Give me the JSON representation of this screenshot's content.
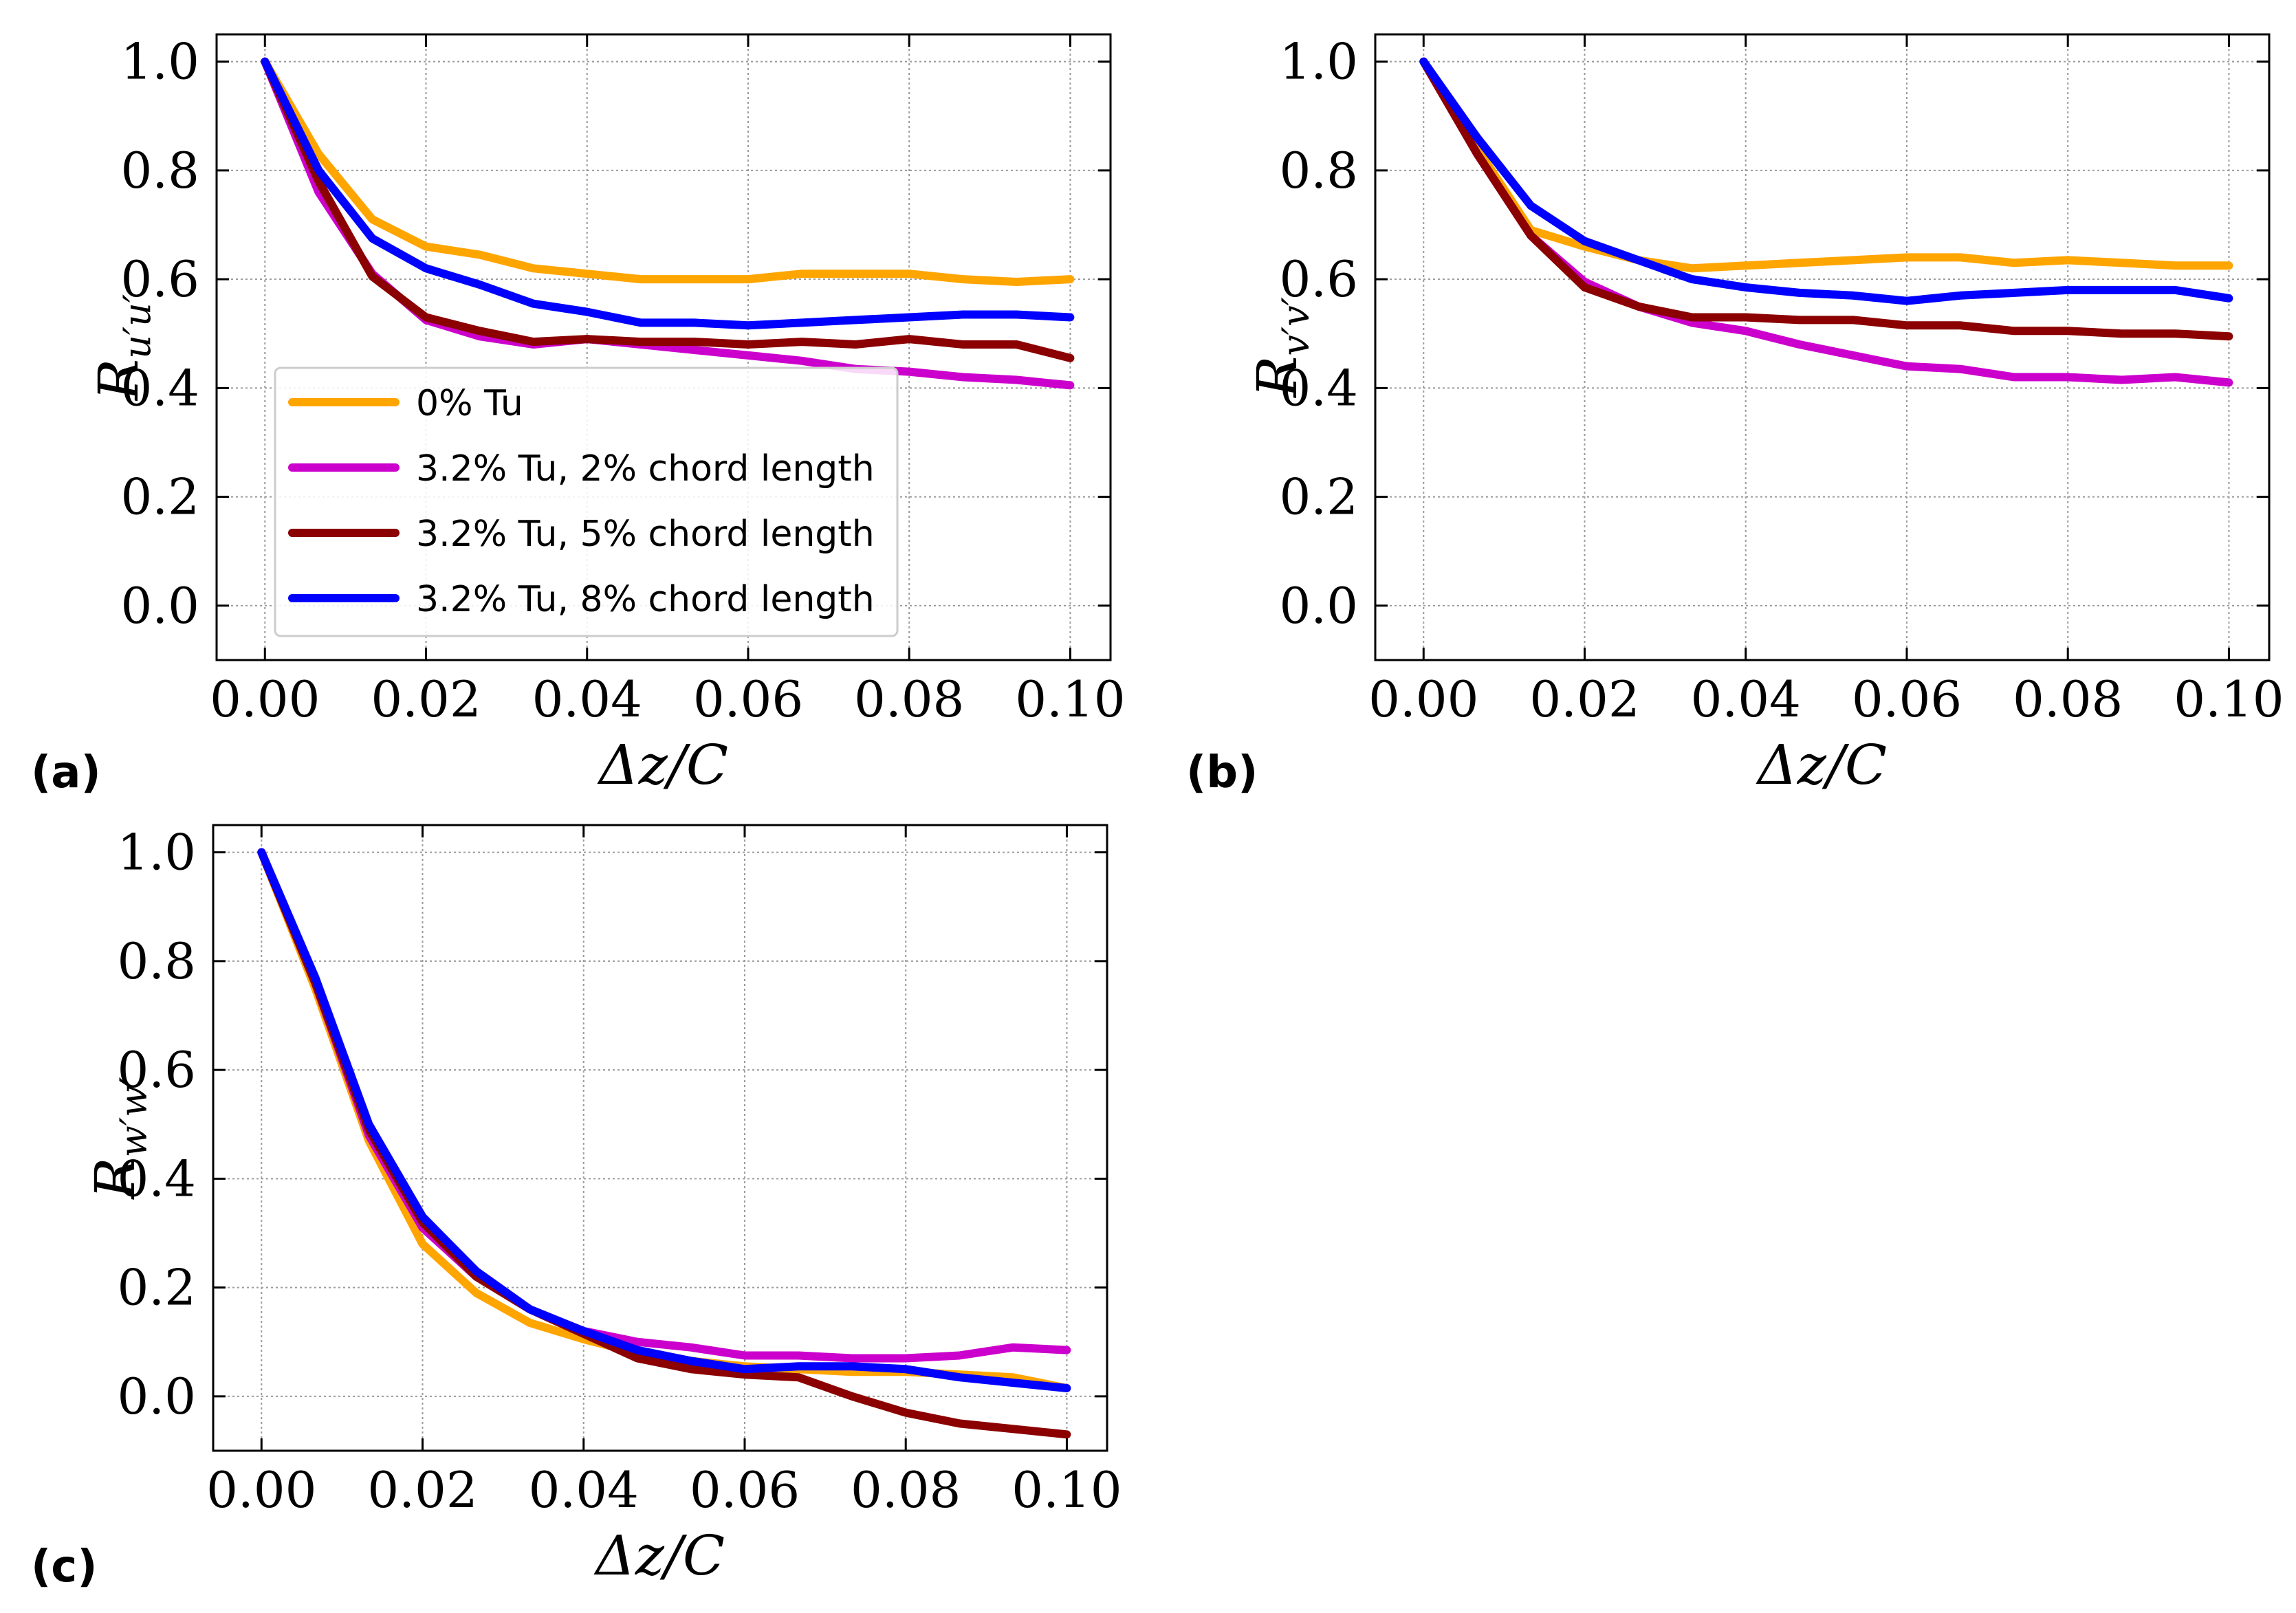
{
  "chart_data": [
    {
      "panel": "(a)",
      "type": "line",
      "title": "",
      "xlabel": "Δz/C",
      "ylabel": "R_u'u'",
      "ylabel_main": "R",
      "ylabel_sub": "u′u′",
      "xlim": [
        -0.006,
        0.105
      ],
      "ylim": [
        -0.1,
        1.05
      ],
      "xticks": [
        0.0,
        0.02,
        0.04,
        0.06,
        0.08,
        0.1
      ],
      "xtick_labels": [
        "0.00",
        "0.02",
        "0.04",
        "0.06",
        "0.08",
        "0.10"
      ],
      "yticks": [
        0.0,
        0.2,
        0.4,
        0.6,
        0.8,
        1.0
      ],
      "ytick_labels": [
        "0.0",
        "0.2",
        "0.4",
        "0.6",
        "0.8",
        "1.0"
      ],
      "grid": true,
      "legend": "lower-left",
      "x": [
        0.0,
        0.00667,
        0.01333,
        0.02,
        0.02667,
        0.03333,
        0.04,
        0.04667,
        0.05333,
        0.06,
        0.06667,
        0.07333,
        0.08,
        0.08667,
        0.09333,
        0.1
      ],
      "series": [
        {
          "name": "0% Tu",
          "color": "#FFA500",
          "values": [
            1.0,
            0.83,
            0.71,
            0.66,
            0.645,
            0.62,
            0.61,
            0.6,
            0.6,
            0.6,
            0.61,
            0.61,
            0.61,
            0.6,
            0.595,
            0.6
          ]
        },
        {
          "name": "3.2% Tu, 2% chord length",
          "color": "#CC00CC",
          "values": [
            1.0,
            0.76,
            0.61,
            0.525,
            0.495,
            0.48,
            0.49,
            0.48,
            0.47,
            0.46,
            0.45,
            0.435,
            0.43,
            0.42,
            0.415,
            0.405
          ]
        },
        {
          "name": "3.2% Tu, 5% chord length",
          "color": "#8B0000",
          "values": [
            1.0,
            0.78,
            0.605,
            0.53,
            0.505,
            0.485,
            0.49,
            0.485,
            0.485,
            0.48,
            0.485,
            0.48,
            0.49,
            0.48,
            0.48,
            0.455
          ]
        },
        {
          "name": "3.2% Tu, 8% chord length",
          "color": "#0000FF",
          "values": [
            1.0,
            0.8,
            0.675,
            0.62,
            0.59,
            0.555,
            0.54,
            0.52,
            0.52,
            0.515,
            0.52,
            0.525,
            0.53,
            0.535,
            0.535,
            0.53
          ]
        }
      ]
    },
    {
      "panel": "(b)",
      "type": "line",
      "title": "",
      "xlabel": "Δz/C",
      "ylabel": "R_v'v'",
      "ylabel_main": "R",
      "ylabel_sub": "v′v′",
      "xlim": [
        -0.006,
        0.105
      ],
      "ylim": [
        -0.1,
        1.05
      ],
      "xticks": [
        0.0,
        0.02,
        0.04,
        0.06,
        0.08,
        0.1
      ],
      "xtick_labels": [
        "0.00",
        "0.02",
        "0.04",
        "0.06",
        "0.08",
        "0.10"
      ],
      "yticks": [
        0.0,
        0.2,
        0.4,
        0.6,
        0.8,
        1.0
      ],
      "ytick_labels": [
        "0.0",
        "0.2",
        "0.4",
        "0.6",
        "0.8",
        "1.0"
      ],
      "grid": true,
      "x": [
        0.0,
        0.00667,
        0.01333,
        0.02,
        0.02667,
        0.03333,
        0.04,
        0.04667,
        0.05333,
        0.06,
        0.06667,
        0.07333,
        0.08,
        0.08667,
        0.09333,
        0.1
      ],
      "series": [
        {
          "name": "0% Tu",
          "color": "#FFA500",
          "values": [
            1.0,
            0.84,
            0.69,
            0.66,
            0.635,
            0.62,
            0.625,
            0.63,
            0.635,
            0.64,
            0.64,
            0.63,
            0.635,
            0.63,
            0.625,
            0.625
          ]
        },
        {
          "name": "3.2% Tu, 2% chord length",
          "color": "#CC00CC",
          "values": [
            1.0,
            0.83,
            0.68,
            0.595,
            0.55,
            0.52,
            0.505,
            0.48,
            0.46,
            0.44,
            0.435,
            0.42,
            0.42,
            0.415,
            0.42,
            0.41
          ]
        },
        {
          "name": "3.2% Tu, 5% chord length",
          "color": "#8B0000",
          "values": [
            1.0,
            0.83,
            0.68,
            0.585,
            0.55,
            0.53,
            0.53,
            0.525,
            0.525,
            0.515,
            0.515,
            0.505,
            0.505,
            0.5,
            0.5,
            0.495
          ]
        },
        {
          "name": "3.2% Tu, 8% chord length",
          "color": "#0000FF",
          "values": [
            1.0,
            0.86,
            0.735,
            0.67,
            0.635,
            0.6,
            0.585,
            0.575,
            0.57,
            0.56,
            0.57,
            0.575,
            0.58,
            0.58,
            0.58,
            0.565
          ]
        }
      ]
    },
    {
      "panel": "(c)",
      "type": "line",
      "title": "",
      "xlabel": "Δz/C",
      "ylabel": "R_w'w'",
      "ylabel_main": "R",
      "ylabel_sub": "w′w′",
      "xlim": [
        -0.006,
        0.105
      ],
      "ylim": [
        -0.1,
        1.05
      ],
      "xticks": [
        0.0,
        0.02,
        0.04,
        0.06,
        0.08,
        0.1
      ],
      "xtick_labels": [
        "0.00",
        "0.02",
        "0.04",
        "0.06",
        "0.08",
        "0.10"
      ],
      "yticks": [
        0.0,
        0.2,
        0.4,
        0.6,
        0.8,
        1.0
      ],
      "ytick_labels": [
        "0.0",
        "0.2",
        "0.4",
        "0.6",
        "0.8",
        "1.0"
      ],
      "grid": true,
      "x": [
        0.0,
        0.00667,
        0.01333,
        0.02,
        0.02667,
        0.03333,
        0.04,
        0.04667,
        0.05333,
        0.06,
        0.06667,
        0.07333,
        0.08,
        0.08667,
        0.09333,
        0.1
      ],
      "series": [
        {
          "name": "0% Tu",
          "color": "#FFA500",
          "values": [
            1.0,
            0.75,
            0.47,
            0.28,
            0.19,
            0.135,
            0.105,
            0.08,
            0.065,
            0.055,
            0.05,
            0.045,
            0.045,
            0.04,
            0.035,
            0.015
          ]
        },
        {
          "name": "3.2% Tu, 2% chord length",
          "color": "#CC00CC",
          "values": [
            1.0,
            0.76,
            0.48,
            0.31,
            0.22,
            0.16,
            0.12,
            0.1,
            0.09,
            0.075,
            0.075,
            0.07,
            0.07,
            0.075,
            0.09,
            0.085
          ]
        },
        {
          "name": "3.2% Tu, 5% chord length",
          "color": "#8B0000",
          "values": [
            1.0,
            0.76,
            0.49,
            0.32,
            0.22,
            0.16,
            0.115,
            0.07,
            0.05,
            0.04,
            0.035,
            0.0,
            -0.03,
            -0.05,
            -0.06,
            -0.07
          ]
        },
        {
          "name": "3.2% Tu, 8% chord length",
          "color": "#0000FF",
          "values": [
            1.0,
            0.77,
            0.5,
            0.33,
            0.23,
            0.16,
            0.12,
            0.085,
            0.065,
            0.05,
            0.055,
            0.055,
            0.05,
            0.035,
            0.025,
            0.015
          ]
        }
      ]
    }
  ]
}
